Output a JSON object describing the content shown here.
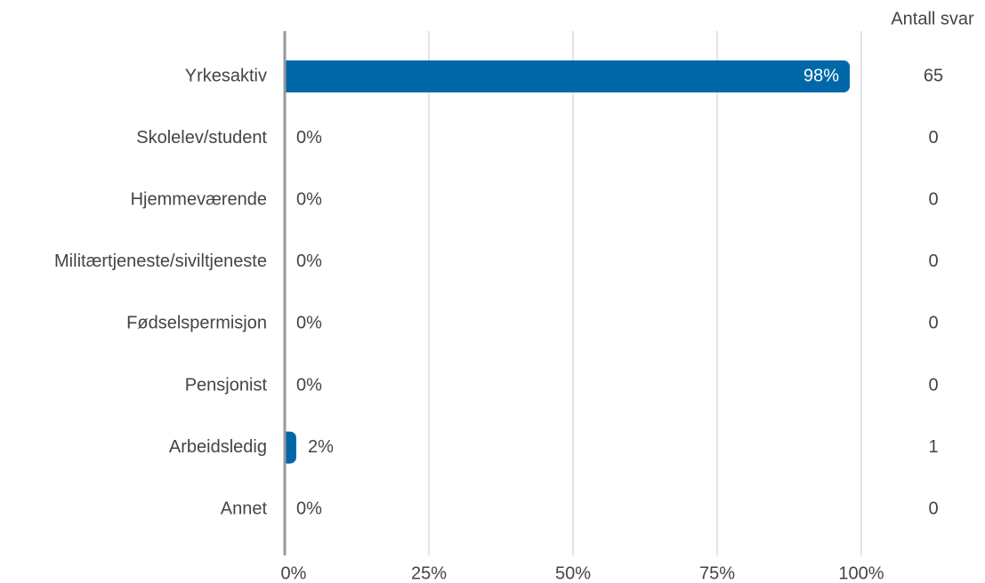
{
  "chart_data": {
    "type": "hbar",
    "categories": [
      "Yrkesaktiv",
      "Skolelev/student",
      "Hjemmeværende",
      "Militærtjeneste/siviltjeneste",
      "Fødselspermisjon",
      "Pensjonist",
      "Arbeidsledig",
      "Annet"
    ],
    "values": [
      98,
      0,
      0,
      0,
      0,
      0,
      2,
      0
    ],
    "value_labels": [
      "98%",
      "0%",
      "0%",
      "0%",
      "0%",
      "0%",
      "2%",
      "0%"
    ],
    "color": "#0068a8",
    "xlim": [
      0,
      100
    ],
    "xticks": [
      {
        "value": 0,
        "label": "0%"
      },
      {
        "value": 25,
        "label": "25%"
      },
      {
        "value": 50,
        "label": "50%"
      },
      {
        "value": 75,
        "label": "75%"
      },
      {
        "value": 100,
        "label": "100%"
      }
    ],
    "grid": true,
    "counts_header": "Antall svar",
    "counts": [
      65,
      0,
      0,
      0,
      0,
      0,
      1,
      0
    ]
  }
}
